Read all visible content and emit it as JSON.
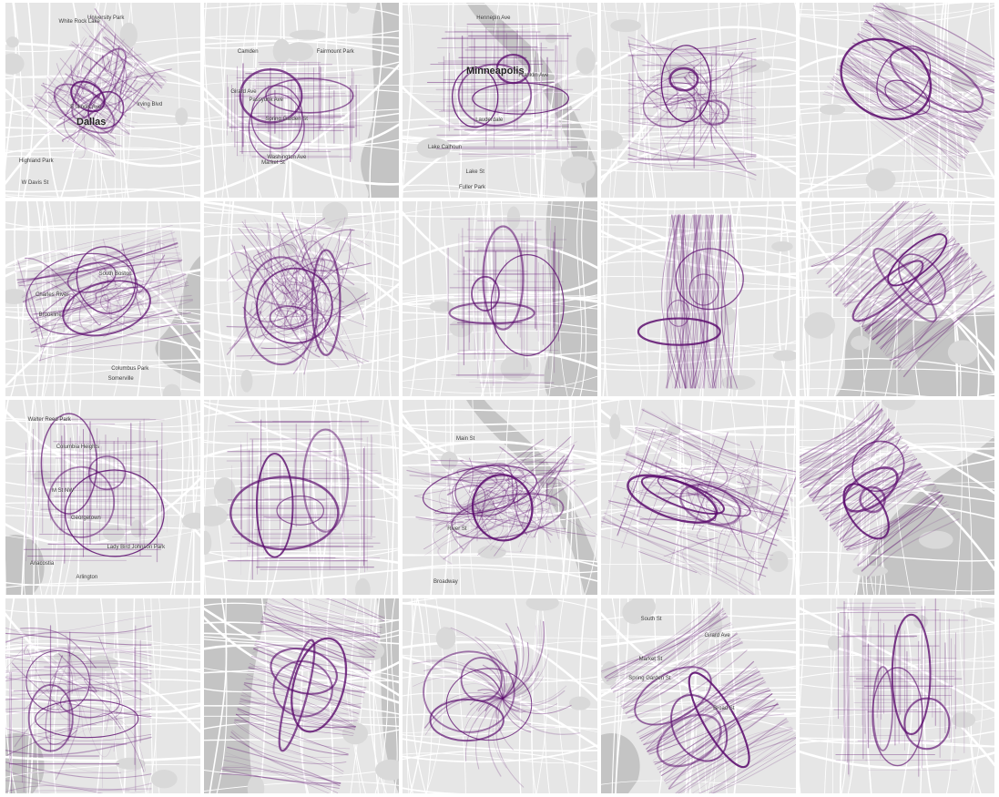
{
  "colors": {
    "background": "#ffffff",
    "land": "#e6e6e6",
    "water": "#c4c4c4",
    "park": "#d9d9d9",
    "road": "#ffffff",
    "route": "#5c0d6e"
  },
  "tiles": [
    {
      "id": "dallas",
      "water": "none",
      "labels": [
        "University Park",
        "Dallas",
        "Highland Park",
        "White Rock Lake",
        "W Davis St",
        "Irving Blvd",
        "E Illinois Ave"
      ]
    },
    {
      "id": "philadelphia",
      "water": "river-right",
      "labels": [
        "Fairmount Park",
        "Spring Garden St",
        "Market St",
        "Washington Ave",
        "Passyunk Ave",
        "Camden",
        "Girard Ave"
      ]
    },
    {
      "id": "minneapolis",
      "water": "river-center",
      "labels": [
        "Minneapolis",
        "Lake Calhoun",
        "Fuller Park",
        "Lauderdale",
        "Hennepin Ave",
        "Lake St",
        "Franklin Ave"
      ]
    },
    {
      "id": "city-4",
      "water": "none",
      "labels": []
    },
    {
      "id": "city-5",
      "water": "none",
      "labels": []
    },
    {
      "id": "boston",
      "water": "harbor",
      "labels": [
        "Charles River",
        "South Boston",
        "Columbus Park",
        "Somerville",
        "Brookline"
      ]
    },
    {
      "id": "city-7",
      "water": "none",
      "labels": []
    },
    {
      "id": "chicago",
      "water": "lake-right",
      "labels": []
    },
    {
      "id": "city-9",
      "water": "none",
      "labels": []
    },
    {
      "id": "city-10",
      "water": "bay-lower",
      "labels": []
    },
    {
      "id": "washington-dc",
      "water": "river-left",
      "labels": [
        "Walter Reed Park",
        "Lady Bird Johnson Park",
        "Arlington",
        "Anacostia",
        "Columbia Heights",
        "M St NW",
        "Georgetown"
      ]
    },
    {
      "id": "city-12",
      "water": "none",
      "labels": []
    },
    {
      "id": "city-13",
      "water": "river-center",
      "labels": [
        "River St",
        "Main St",
        "Broadway"
      ]
    },
    {
      "id": "city-14",
      "water": "none",
      "labels": []
    },
    {
      "id": "city-15",
      "water": "bay-right",
      "labels": []
    },
    {
      "id": "city-16",
      "water": "river-left",
      "labels": []
    },
    {
      "id": "new-york",
      "water": "rivers-both",
      "labels": []
    },
    {
      "id": "paris",
      "water": "none",
      "labels": []
    },
    {
      "id": "city-19",
      "water": "river-left",
      "labels": [
        "Broad St",
        "Market St",
        "South St",
        "Girard Ave",
        "Spring Garden St"
      ]
    },
    {
      "id": "city-20",
      "water": "none",
      "labels": []
    }
  ]
}
